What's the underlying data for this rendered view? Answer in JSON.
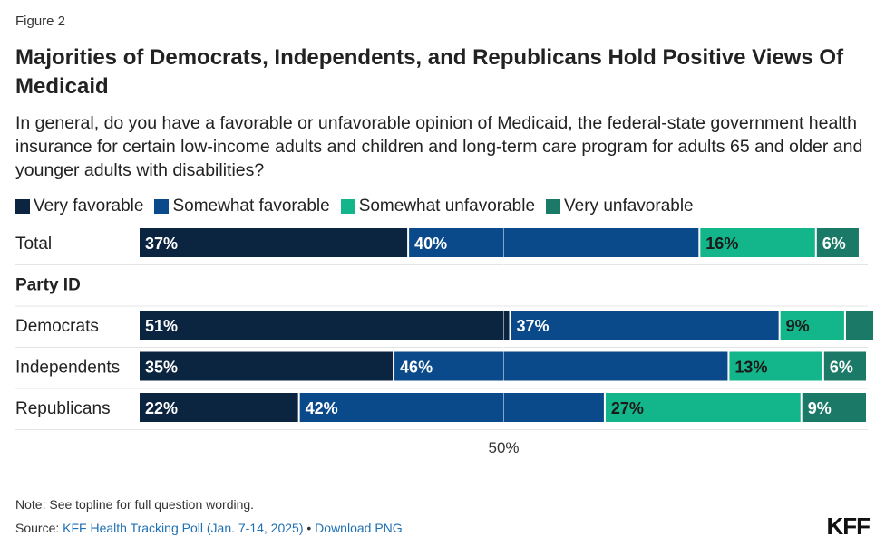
{
  "figure_label": "Figure 2",
  "title": "Majorities of Democrats, Independents, and Republicans Hold Positive Views Of Medicaid",
  "subtitle": "In general, do you have a favorable or unfavorable opinion of Medicaid, the federal-state government health insurance for certain low-income adults and children and long-term care program for adults 65 and older and younger adults with disabilities?",
  "note": "Note: See topline for full question wording.",
  "source": {
    "prefix": "Source: ",
    "link_text": "KFF Health Tracking Poll (Jan. 7-14, 2025)",
    "separator": "•",
    "download_text": "Download PNG"
  },
  "logo": "KFF",
  "colors": {
    "very_favorable": "#0b2440",
    "somewhat_favorable": "#0a4a8a",
    "somewhat_unfavorable": "#13b58a",
    "very_unfavorable": "#1b7a67"
  },
  "chart_data": {
    "type": "bar",
    "orientation": "horizontal",
    "stacked": true,
    "legend_position": "top-left",
    "series": [
      {
        "name": "Very favorable",
        "color": "#0b2440"
      },
      {
        "name": "Somewhat favorable",
        "color": "#0a4a8a"
      },
      {
        "name": "Somewhat unfavorable",
        "color": "#13b58a"
      },
      {
        "name": "Very unfavorable",
        "color": "#1b7a67"
      }
    ],
    "rows": [
      {
        "label": "Total",
        "group_header": false,
        "values": [
          37,
          40,
          16,
          6
        ],
        "labels": [
          "37%",
          "40%",
          "16%",
          "6%"
        ]
      },
      {
        "label": "Party ID",
        "group_header": true
      },
      {
        "label": "Democrats",
        "group_header": false,
        "values": [
          51,
          37,
          9,
          4
        ],
        "labels": [
          "51%",
          "37%",
          "9%",
          ""
        ]
      },
      {
        "label": "Independents",
        "group_header": false,
        "values": [
          35,
          46,
          13,
          6
        ],
        "labels": [
          "35%",
          "46%",
          "13%",
          "6%"
        ]
      },
      {
        "label": "Republicans",
        "group_header": false,
        "values": [
          22,
          42,
          27,
          9
        ],
        "labels": [
          "22%",
          "42%",
          "27%",
          "9%"
        ]
      }
    ],
    "reference_line": {
      "value": 50,
      "label": "50%"
    },
    "xlim": [
      0,
      100
    ]
  }
}
